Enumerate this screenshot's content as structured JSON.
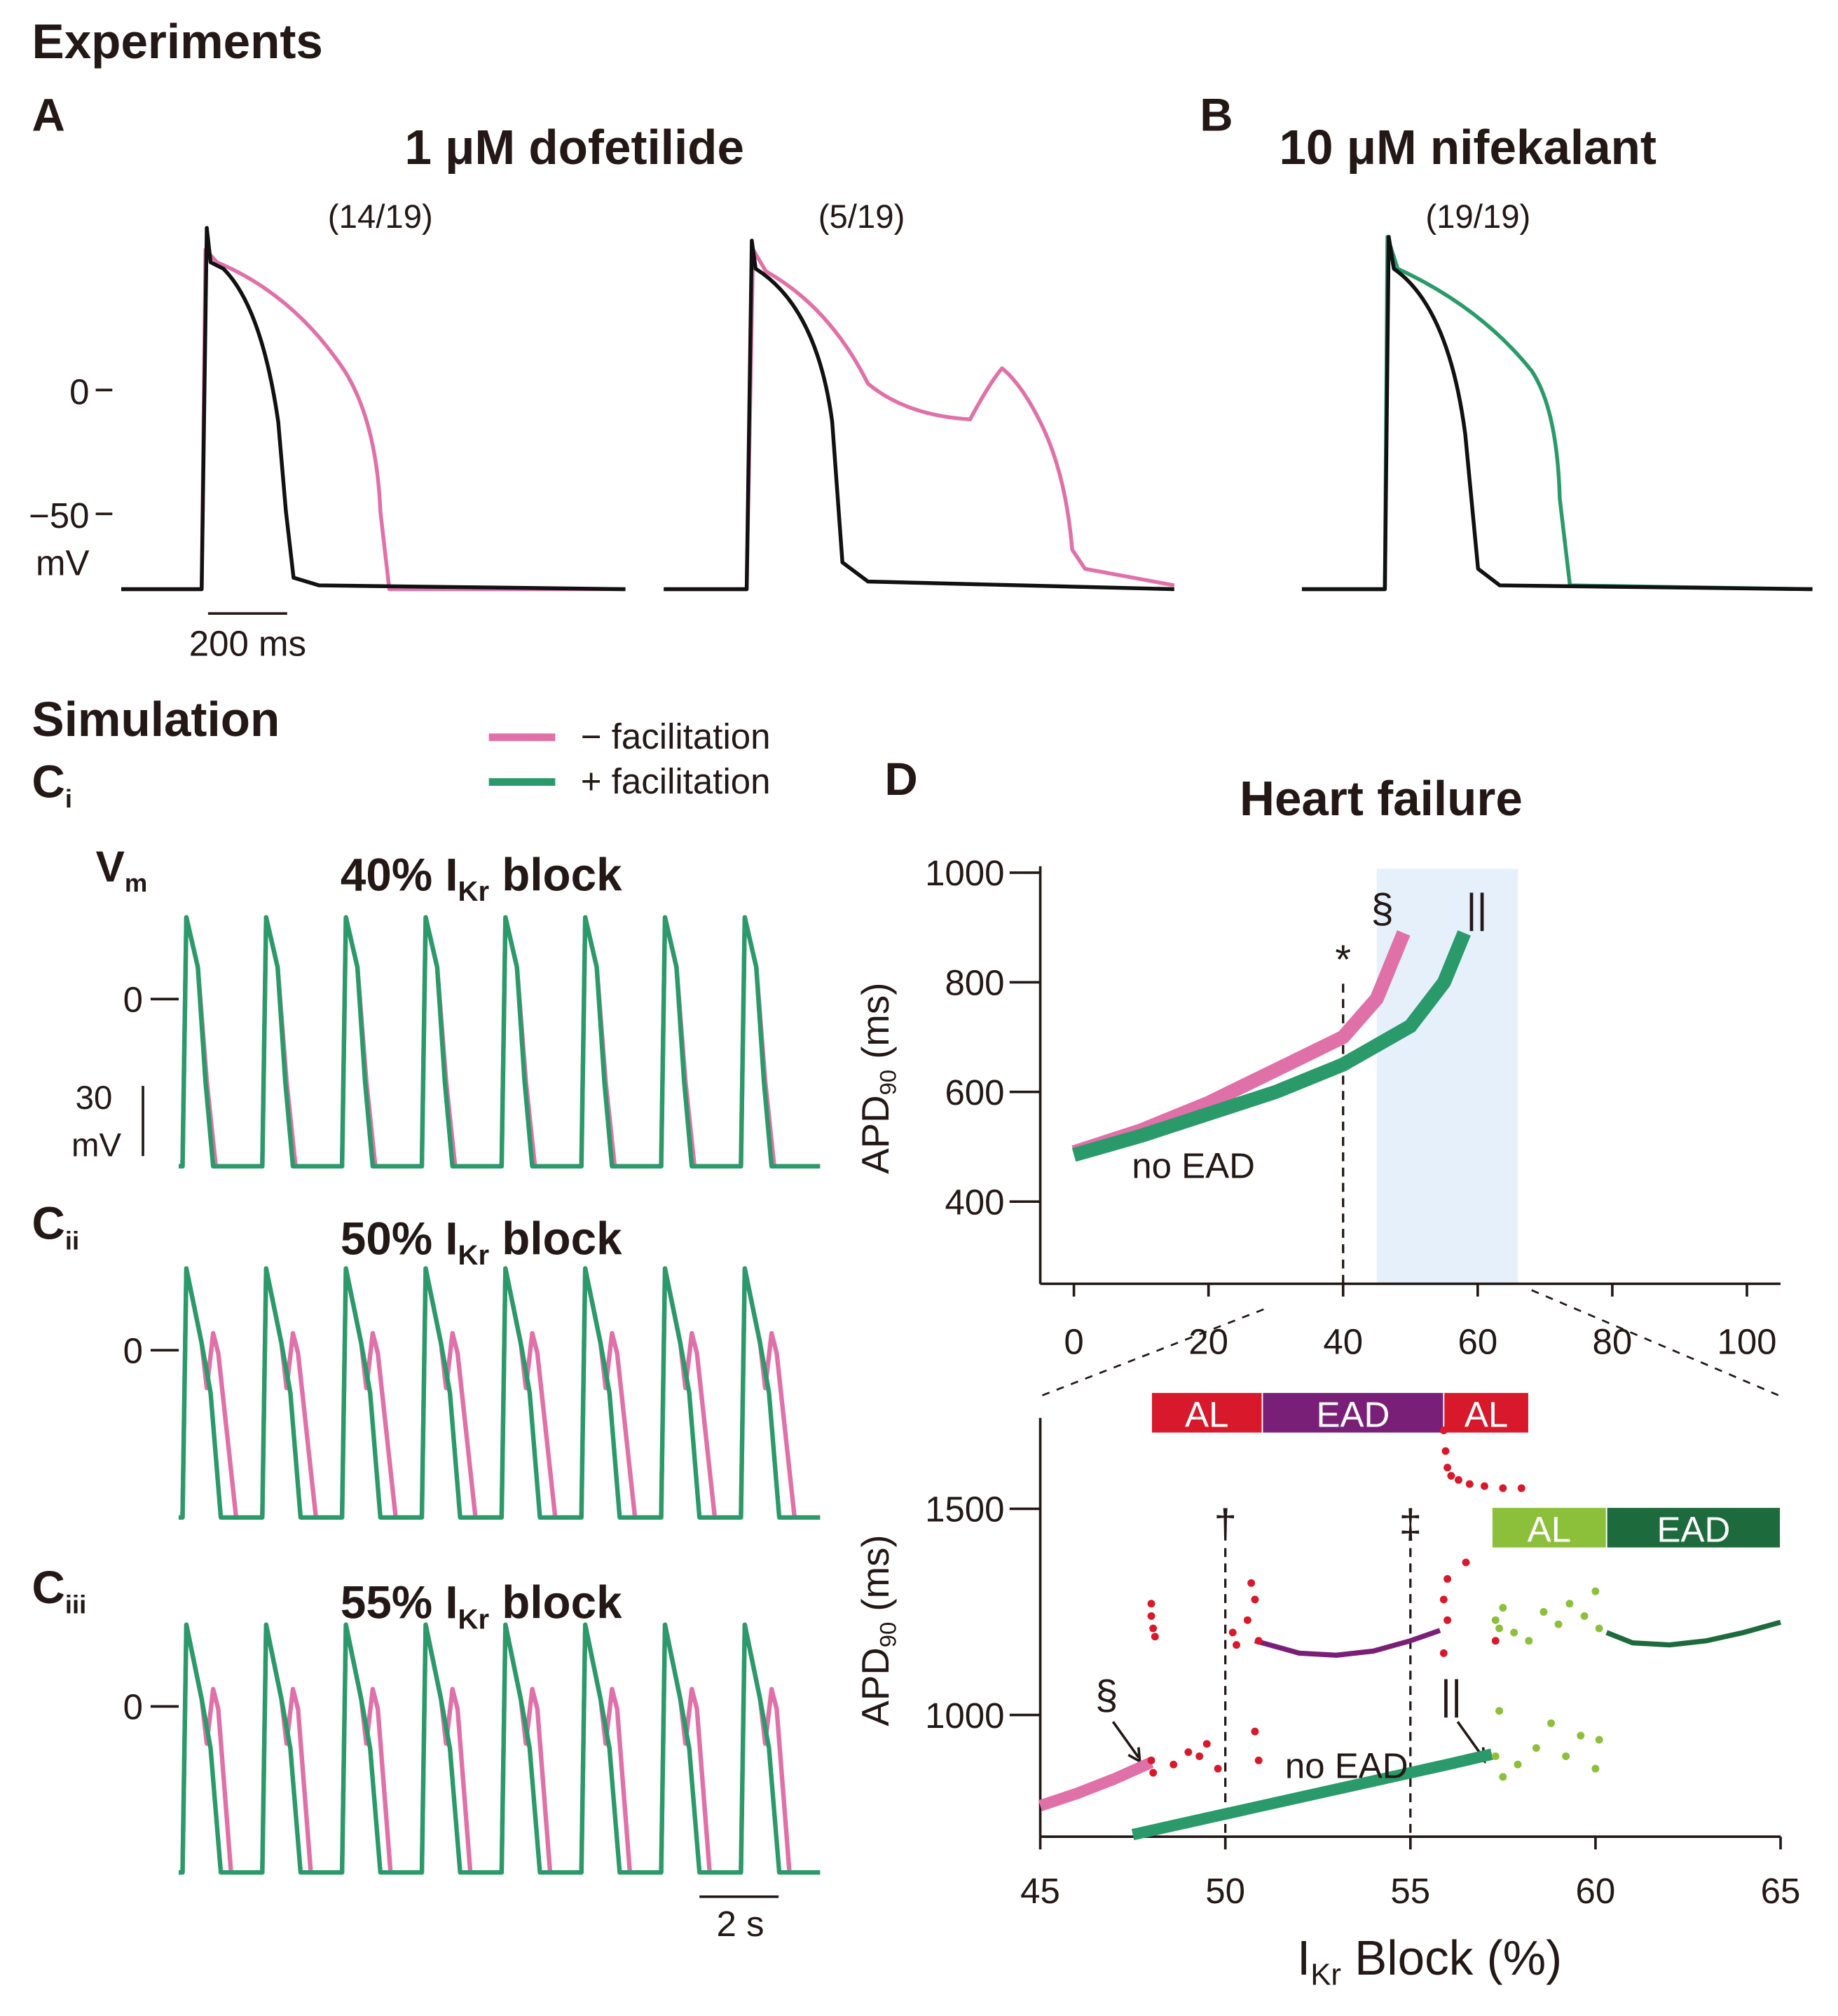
{
  "experiments": {
    "heading": "Experiments",
    "panel_a": {
      "letter": "A",
      "title": "1 μM dofetilide",
      "counts": [
        "(14/19)",
        "(5/19)"
      ]
    },
    "panel_b": {
      "letter": "B",
      "title": "10 μM nifekalant",
      "count": "(19/19)"
    },
    "y_labels": [
      "0",
      "−50",
      "mV"
    ],
    "scale_bar": "200 ms"
  },
  "simulation": {
    "heading": "Simulation",
    "vm": {
      "main": "V",
      "sub": "m"
    },
    "panels": [
      {
        "letter": "C",
        "sub": "i",
        "prefix": "40% I",
        "kr": "Kr",
        "suffix": " block"
      },
      {
        "letter": "C",
        "sub": "ii",
        "prefix": "50% I",
        "kr": "Kr",
        "suffix": " block"
      },
      {
        "letter": "C",
        "sub": "iii",
        "prefix": "55% I",
        "kr": "Kr",
        "suffix": " block"
      }
    ],
    "zero": "0",
    "scale_v": "30",
    "scale_v_unit": "mV",
    "scale_t": "2 s"
  },
  "panel_d": {
    "letter": "D"
  },
  "chart_data": [
    {
      "type": "line",
      "title": "Heart failure",
      "ylabel": {
        "main": "APD",
        "sub": "90",
        "rest": " (ms)"
      },
      "xlim": [
        -5,
        105
      ],
      "ylim": [
        250,
        1000
      ],
      "xticks": [
        0,
        20,
        40,
        60,
        80,
        100
      ],
      "yticks": [
        400,
        600,
        800,
        1000
      ],
      "shade": [
        45,
        66
      ],
      "reference_lines": [
        {
          "x": 40,
          "label": "*"
        }
      ],
      "annotations": [
        "§",
        "||",
        "no EAD"
      ],
      "series": [
        {
          "name": "− facilitation",
          "color": "#e070a8",
          "x": [
            0,
            10,
            20,
            30,
            40,
            45,
            49
          ],
          "values": [
            490,
            530,
            580,
            640,
            700,
            770,
            890
          ]
        },
        {
          "name": "+ facilitation",
          "color": "#2a9a6a",
          "x": [
            0,
            10,
            20,
            30,
            40,
            50,
            55,
            58
          ],
          "values": [
            485,
            520,
            560,
            600,
            650,
            720,
            800,
            890
          ]
        }
      ]
    },
    {
      "type": "line",
      "xlabel": {
        "main": "I",
        "sub": "Kr",
        "rest": " Block (%)"
      },
      "ylabel": {
        "main": "APD",
        "sub": "90",
        "rest": " (ms)"
      },
      "xlim": [
        45,
        65
      ],
      "ylim": [
        705,
        1705
      ],
      "xticks": [
        45,
        50,
        55,
        60,
        65
      ],
      "yticks": [
        1000,
        1500
      ],
      "reference_lines": [
        {
          "x": 50,
          "label": "†"
        },
        {
          "x": 55,
          "label": "‡"
        }
      ],
      "annotations": [
        "§",
        "||",
        "no EAD"
      ],
      "regions": [
        [
          {
            "label": "AL",
            "from": 48,
            "to": 51,
            "color": "#d7192b"
          },
          {
            "label": "EAD",
            "from": 51,
            "to": 55.9,
            "color": "#7a1f78"
          },
          {
            "label": "AL",
            "from": 55.9,
            "to": 58.2,
            "color": "#d7192b"
          }
        ],
        [
          {
            "label": "AL",
            "from": 57.2,
            "to": 60.3,
            "color": "#8cbf3a"
          },
          {
            "label": "EAD",
            "from": 60.3,
            "to": 65,
            "color": "#1d6b3c"
          }
        ]
      ],
      "series": [
        {
          "color": "#e070a8",
          "mode": "lines",
          "x": [
            45,
            46,
            47,
            48
          ],
          "values": [
            780,
            810,
            845,
            885
          ]
        },
        {
          "color": "#2a9a6a",
          "mode": "lines",
          "x": [
            47.5,
            50,
            52,
            54,
            56,
            57.2
          ],
          "values": [
            710,
            760,
            800,
            840,
            880,
            905
          ]
        },
        {
          "color": "#7a1f78",
          "mode": "lines",
          "x": [
            50.8,
            52,
            53,
            54,
            55,
            55.8
          ],
          "values": [
            1180,
            1150,
            1145,
            1155,
            1180,
            1205
          ]
        },
        {
          "color": "#1d6b3c",
          "mode": "lines",
          "x": [
            60.3,
            61,
            62,
            63,
            64,
            65
          ],
          "values": [
            1200,
            1175,
            1170,
            1180,
            1200,
            1225
          ]
        },
        {
          "color": "#d7192b",
          "mode": "markers",
          "x": [
            48,
            48,
            48.05,
            48.1,
            48,
            48.05,
            48.6,
            49,
            49.5,
            49.8,
            50.2,
            50.6,
            50.8,
            50.9,
            50.7,
            50.3,
            49.3,
            50.8,
            50.9,
            55.9,
            55.95,
            56,
            56.1,
            56.3,
            56.6,
            57,
            57.5,
            58,
            55.9,
            56,
            55.9,
            56,
            56.5,
            57.3
          ],
          "values": [
            1270,
            1240,
            1210,
            1190,
            890,
            860,
            880,
            910,
            930,
            870,
            1200,
            1230,
            1280,
            1180,
            1320,
            1170,
            900,
            960,
            890,
            1690,
            1640,
            1600,
            1580,
            1570,
            1560,
            1555,
            1550,
            1550,
            1280,
            1230,
            1150,
            1330,
            1370,
            1180
          ]
        },
        {
          "color": "#8cbf3a",
          "mode": "markers",
          "x": [
            57.3,
            57.4,
            57.5,
            57.8,
            58.2,
            58.6,
            59,
            59.3,
            59.7,
            60,
            60.1,
            57.3,
            57.5,
            57.9,
            58.4,
            58.8,
            59.2,
            59.6,
            60,
            60.1,
            57.4
          ],
          "values": [
            1230,
            1210,
            1260,
            1200,
            1180,
            1250,
            1220,
            1270,
            1240,
            1300,
            1210,
            900,
            850,
            880,
            920,
            980,
            900,
            950,
            870,
            940,
            1010
          ]
        }
      ]
    }
  ]
}
